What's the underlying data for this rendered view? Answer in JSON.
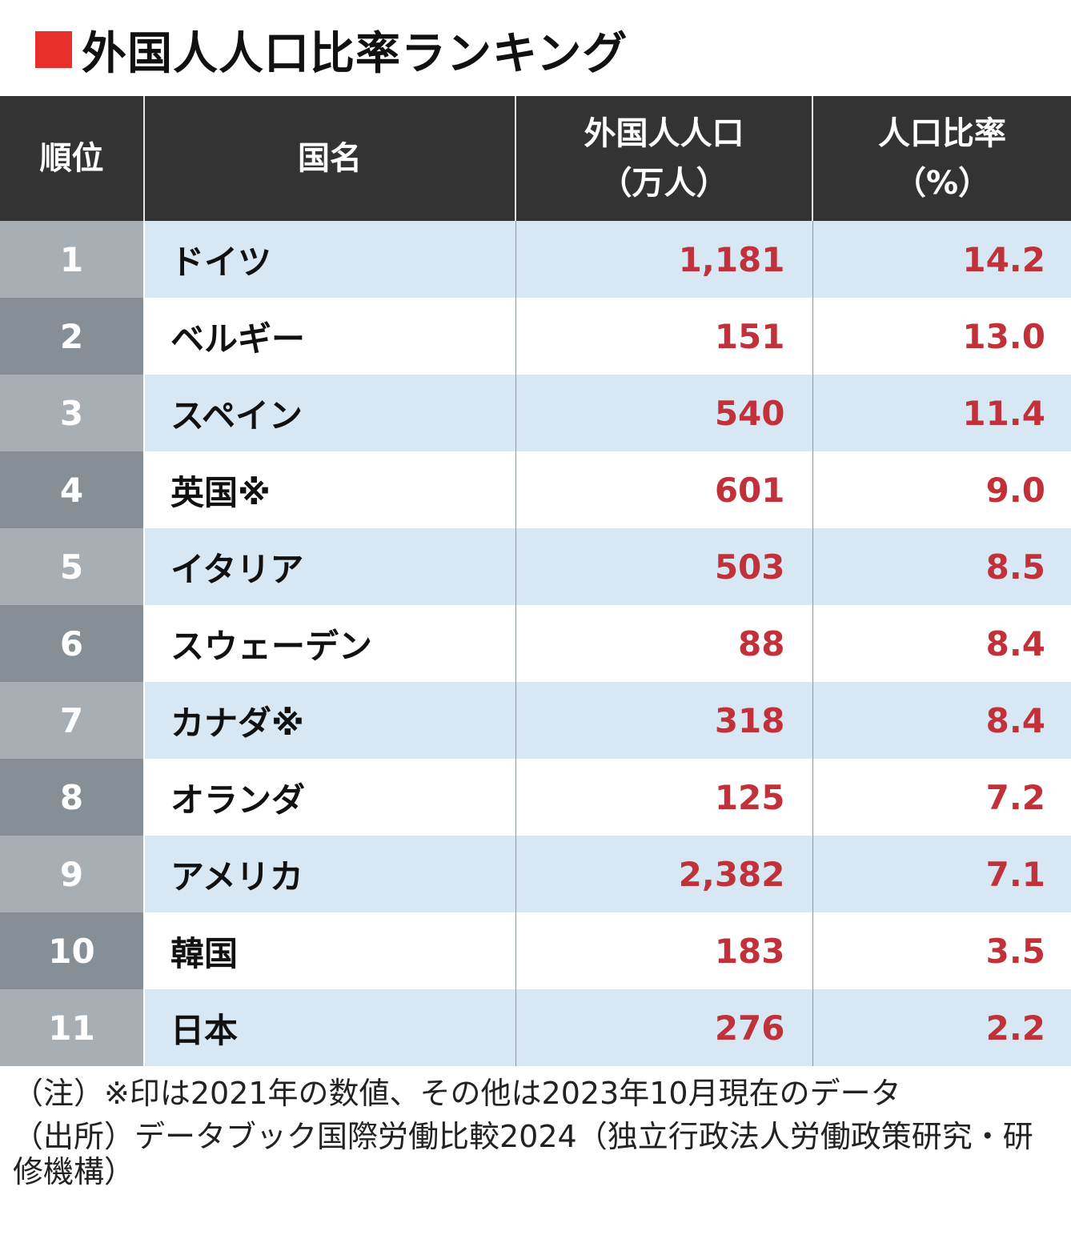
{
  "title": "外国人人口比率ランキング",
  "headers": {
    "rank": "順位",
    "country": "国名",
    "population_line1": "外国人人口",
    "population_line2": "（万人）",
    "ratio_line1": "人口比率",
    "ratio_line2": "（%）"
  },
  "rows": [
    {
      "rank": "1",
      "country": "ドイツ",
      "population": "1,181",
      "ratio": "14.2"
    },
    {
      "rank": "2",
      "country": "ベルギー",
      "population": "151",
      "ratio": "13.0"
    },
    {
      "rank": "3",
      "country": "スペイン",
      "population": "540",
      "ratio": "11.4"
    },
    {
      "rank": "4",
      "country": "英国※",
      "population": "601",
      "ratio": "9.0"
    },
    {
      "rank": "5",
      "country": "イタリア",
      "population": "503",
      "ratio": "8.5"
    },
    {
      "rank": "6",
      "country": "スウェーデン",
      "population": "88",
      "ratio": "8.4"
    },
    {
      "rank": "7",
      "country": "カナダ※",
      "population": "318",
      "ratio": "8.4"
    },
    {
      "rank": "8",
      "country": "オランダ",
      "population": "125",
      "ratio": "7.2"
    },
    {
      "rank": "9",
      "country": "アメリカ",
      "population": "2,382",
      "ratio": "7.1"
    },
    {
      "rank": "10",
      "country": "韓国",
      "population": "183",
      "ratio": "3.5"
    },
    {
      "rank": "11",
      "country": "日本",
      "population": "276",
      "ratio": "2.2"
    }
  ],
  "notes": {
    "note": "（注）※印は2021年の数値、その他は2023年10月現在のデータ",
    "source": "（出所）データブック国際労働比較2024（独立行政法人労働政策研究・研修機構）"
  },
  "colors": {
    "title_square": "#e8302a",
    "header_bg": "#333333",
    "value_text": "#c1313a",
    "row_highlight": "#d7e8f4"
  }
}
